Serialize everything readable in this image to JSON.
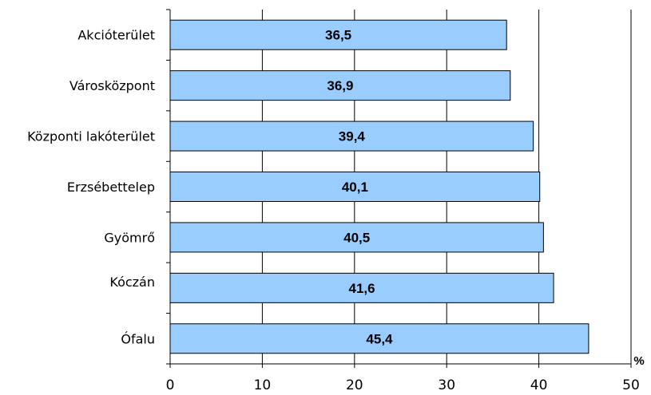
{
  "chart_data": {
    "type": "bar",
    "orientation": "horizontal",
    "categories": [
      "Akcióterület",
      "Városközpont",
      "Központi lakóterület",
      "Erzsébettelep",
      "Gyömrő",
      "Kóczán",
      "Ófalu"
    ],
    "values": [
      36.5,
      36.9,
      39.4,
      40.1,
      40.5,
      41.6,
      45.4
    ],
    "data_labels": [
      "36,5",
      "36,9",
      "39,4",
      "40,1",
      "40,5",
      "41,6",
      "45,4"
    ],
    "xticks": [
      "0",
      "10",
      "20",
      "30",
      "40",
      "50"
    ],
    "xlim": [
      0,
      50
    ],
    "xunit": "%",
    "grid": true,
    "colors": {
      "bar_fill": "#99ccff",
      "bar_stroke": "#000000",
      "grid": "#000000",
      "axis": "#000000"
    }
  }
}
